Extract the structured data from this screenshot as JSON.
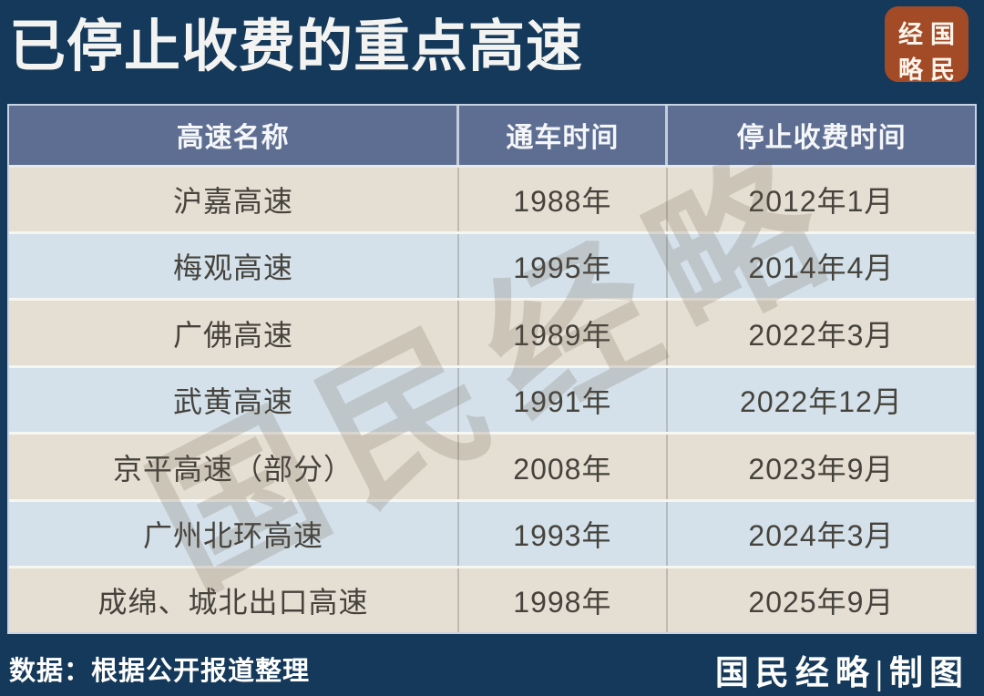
{
  "title": "已停止收费的重点高速",
  "logo": {
    "chars": [
      "经",
      "国",
      "略",
      "民"
    ],
    "bg_color": "#a34b26"
  },
  "table": {
    "headers": [
      "高速名称",
      "通车时间",
      "停止收费时间"
    ],
    "rows": [
      [
        "沪嘉高速",
        "1988年",
        "2012年1月"
      ],
      [
        "梅观高速",
        "1995年",
        "2014年4月"
      ],
      [
        "广佛高速",
        "1989年",
        "2022年3月"
      ],
      [
        "武黄高速",
        "1991年",
        "2022年12月"
      ],
      [
        "京平高速（部分）",
        "2008年",
        "2023年9月"
      ],
      [
        "广州北环高速",
        "1993年",
        "2024年3月"
      ],
      [
        "成绵、城北出口高速",
        "1998年",
        "2025年9月"
      ]
    ]
  },
  "watermark": "国民经略",
  "footer": {
    "source": "数据：根据公开报道整理",
    "credit": "国民经略|制图"
  },
  "colors": {
    "background": "#15395a",
    "header_bg": "#5d6e92",
    "row_beige": "#e5dfd3",
    "row_blue": "#d4e1ea",
    "logo_bg": "#a34b26",
    "cell_text": "#45433c",
    "title_text": "#f3f3f1"
  },
  "chart_data": {
    "type": "table",
    "title": "已停止收费的重点高速",
    "columns": [
      "高速名称",
      "通车时间",
      "停止收费时间"
    ],
    "rows": [
      [
        "沪嘉高速",
        "1988年",
        "2012年1月"
      ],
      [
        "梅观高速",
        "1995年",
        "2014年4月"
      ],
      [
        "广佛高速",
        "1989年",
        "2022年3月"
      ],
      [
        "武黄高速",
        "1991年",
        "2022年12月"
      ],
      [
        "京平高速（部分）",
        "2008年",
        "2023年9月"
      ],
      [
        "广州北环高速",
        "1993年",
        "2024年3月"
      ],
      [
        "成绵、城北出口高速",
        "1998年",
        "2025年9月"
      ]
    ],
    "source_note": "数据：根据公开报道整理",
    "credit": "国民经略|制图"
  }
}
